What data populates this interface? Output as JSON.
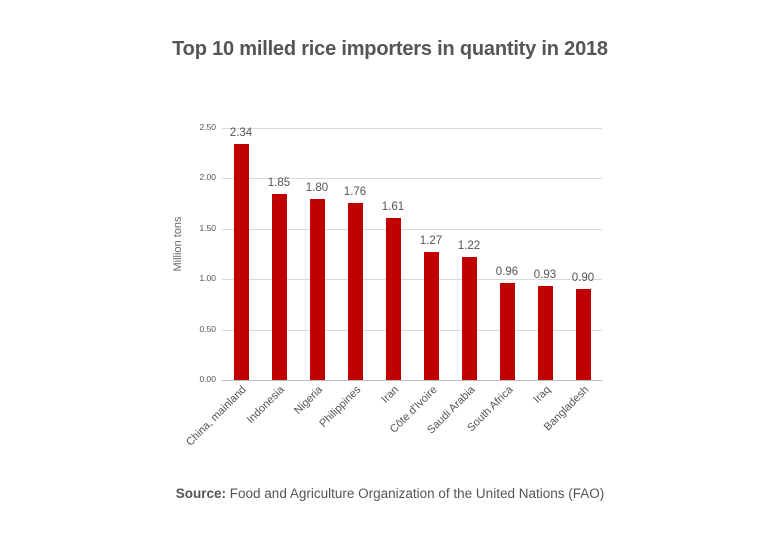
{
  "title": "Top 10 milled rice importers in quantity in 2018",
  "source": {
    "label": "Source:",
    "text": "Food and Agriculture Organization of the United Nations (FAO)"
  },
  "colors": {
    "bar": "#c00000",
    "grid": "#d9d9d9",
    "text": "#555555"
  },
  "chart_data": {
    "type": "bar",
    "title": "Top 10 milled rice importers in quantity in 2018",
    "xlabel": "",
    "ylabel": "Million tons",
    "ylim": [
      0,
      2.5
    ],
    "yticks": [
      "0.00",
      "0.50",
      "1.00",
      "1.50",
      "2.00",
      "2.50"
    ],
    "grid": true,
    "legend": null,
    "categories": [
      "China, mainland",
      "Indonesia",
      "Nigeria",
      "Philippines",
      "Iran",
      "Côte d'Ivoire",
      "Saudi Arabia",
      "South Africa",
      "Iraq",
      "Bangladesh"
    ],
    "values": [
      2.34,
      1.85,
      1.8,
      1.76,
      1.61,
      1.27,
      1.22,
      0.96,
      0.93,
      0.9
    ],
    "value_labels": [
      "2.34",
      "1.85",
      "1.80",
      "1.76",
      "1.61",
      "1.27",
      "1.22",
      "0.96",
      "0.93",
      "0.90"
    ]
  }
}
